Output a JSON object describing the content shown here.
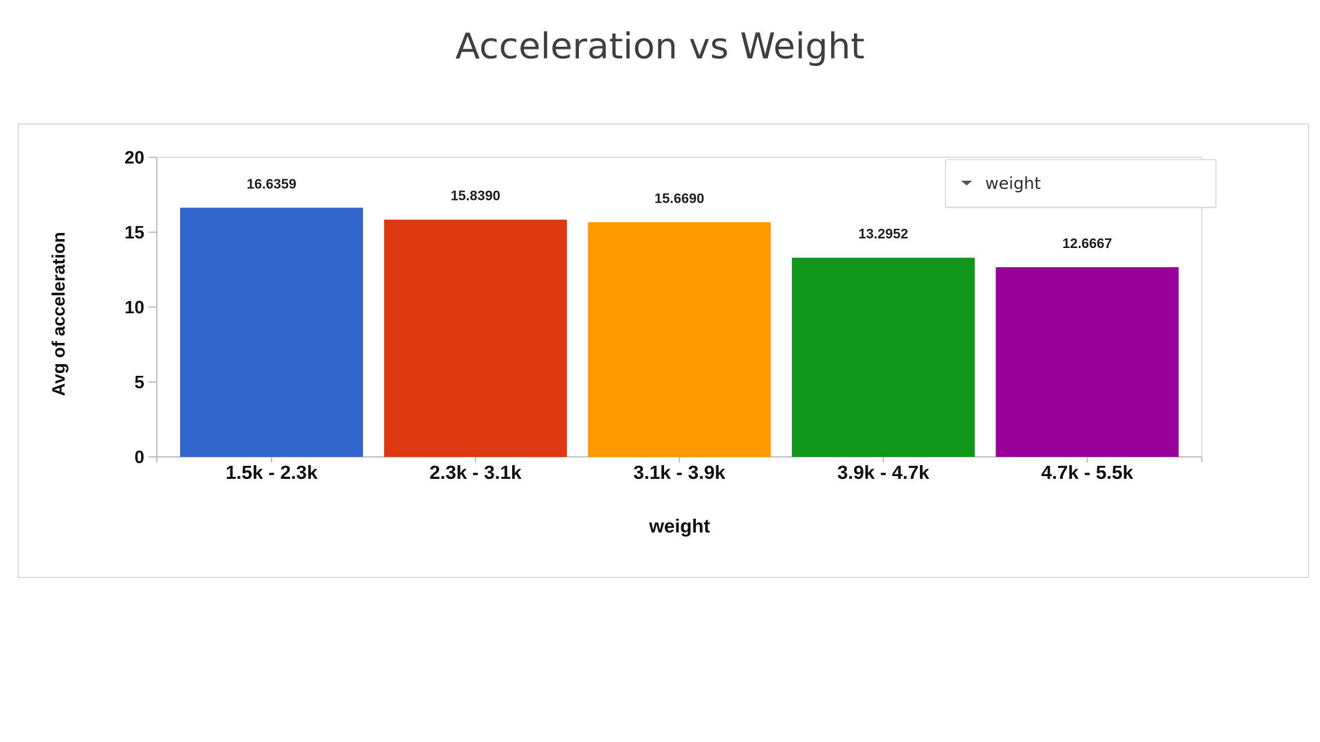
{
  "page": {
    "title": "Acceleration vs Weight"
  },
  "legend": {
    "label": "weight",
    "icon": "caret-down-icon"
  },
  "chart_data": {
    "type": "bar",
    "categories": [
      "1.5k - 2.3k",
      "2.3k - 3.1k",
      "3.1k - 3.9k",
      "3.9k - 4.7k",
      "4.7k - 5.5k"
    ],
    "values": [
      16.6359,
      15.839,
      15.669,
      13.2952,
      12.6667
    ],
    "data_labels": [
      "16.6359",
      "15.8390",
      "15.6690",
      "13.2952",
      "12.6667"
    ],
    "colors": [
      "#3366cc",
      "#dc3912",
      "#ff9900",
      "#109618",
      "#990099"
    ],
    "xlabel": "weight",
    "ylabel": "Avg of acceleration",
    "ylim": [
      0,
      20
    ],
    "yticks": [
      0,
      5,
      10,
      15,
      20
    ],
    "ytick_labels": [
      "0",
      "5",
      "10",
      "15",
      "20"
    ],
    "grid": false,
    "legend_position": "top-right"
  }
}
